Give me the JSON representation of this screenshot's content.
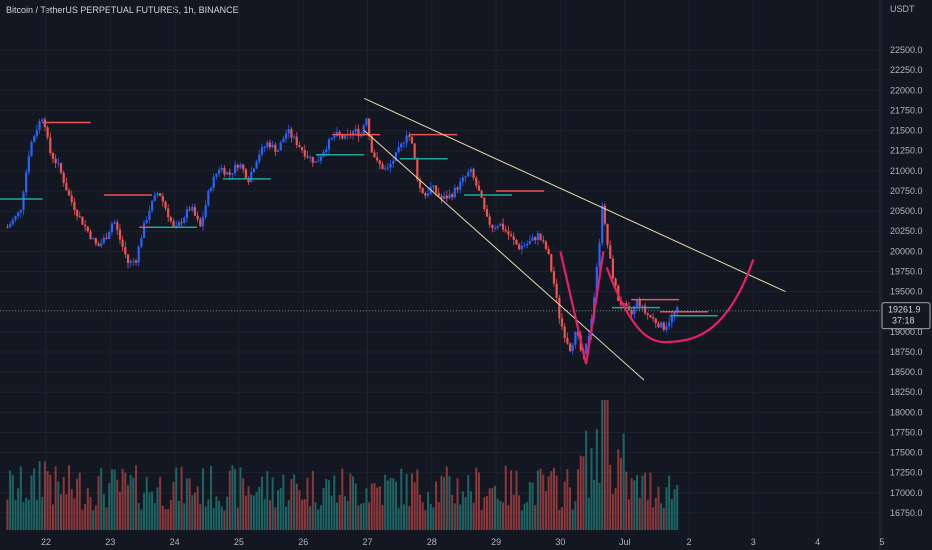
{
  "header": {
    "title": "Bitcoin / TetherUS PERPETUAL FUTURES, 1h, BINANCE"
  },
  "colors": {
    "background": "#131722",
    "up": "#2962ff",
    "down": "#ef5350",
    "trendline": "#e8d9a8",
    "pattern": "#e91e63",
    "vol_up": "#26a69a",
    "vol_down": "#ef5350"
  },
  "chart_data": {
    "type": "candlestick",
    "currency_label": "USDT",
    "yaxis_ticks": [
      16750,
      17000,
      17250,
      17500,
      17750,
      18000,
      18250,
      18500,
      18750,
      19000,
      19250,
      19500,
      19750,
      20000,
      20250,
      20500,
      20750,
      21000,
      21250,
      21500,
      21750,
      22000,
      22250,
      22500
    ],
    "xaxis_ticks": [
      "22",
      "23",
      "24",
      "25",
      "26",
      "27",
      "28",
      "29",
      "30",
      "Jul",
      "2",
      "3",
      "4",
      "5"
    ],
    "ylim": [
      16600,
      22750
    ],
    "xlim": [
      21.4,
      5.2
    ],
    "last_price": {
      "value": "19261.9",
      "countdown": "37:18"
    },
    "close_path": [
      [
        21.4,
        20300
      ],
      [
        21.6,
        20500
      ],
      [
        21.75,
        21300
      ],
      [
        21.88,
        21580
      ],
      [
        21.96,
        21700
      ],
      [
        22.05,
        21250
      ],
      [
        22.2,
        21050
      ],
      [
        22.35,
        20700
      ],
      [
        22.5,
        20450
      ],
      [
        22.65,
        20250
      ],
      [
        22.8,
        20050
      ],
      [
        22.95,
        20200
      ],
      [
        23.05,
        20400
      ],
      [
        23.15,
        20150
      ],
      [
        23.28,
        19850
      ],
      [
        23.4,
        19900
      ],
      [
        23.5,
        20250
      ],
      [
        23.62,
        20550
      ],
      [
        23.75,
        20750
      ],
      [
        23.88,
        20500
      ],
      [
        24.0,
        20250
      ],
      [
        24.12,
        20400
      ],
      [
        24.25,
        20550
      ],
      [
        24.4,
        20300
      ],
      [
        24.55,
        20800
      ],
      [
        24.7,
        21050
      ],
      [
        24.85,
        20950
      ],
      [
        25.0,
        21100
      ],
      [
        25.15,
        20900
      ],
      [
        25.3,
        21200
      ],
      [
        25.45,
        21350
      ],
      [
        25.6,
        21250
      ],
      [
        25.75,
        21500
      ],
      [
        25.9,
        21350
      ],
      [
        26.05,
        21200
      ],
      [
        26.2,
        21100
      ],
      [
        26.35,
        21300
      ],
      [
        26.5,
        21450
      ],
      [
        26.65,
        21400
      ],
      [
        26.8,
        21500
      ],
      [
        26.9,
        21450
      ],
      [
        26.98,
        21700
      ],
      [
        27.05,
        21300
      ],
      [
        27.15,
        21100
      ],
      [
        27.3,
        21000
      ],
      [
        27.45,
        21200
      ],
      [
        27.55,
        21350
      ],
      [
        27.62,
        21500
      ],
      [
        27.7,
        21300
      ],
      [
        27.8,
        20800
      ],
      [
        27.9,
        20700
      ],
      [
        28.0,
        20800
      ],
      [
        28.15,
        20650
      ],
      [
        28.3,
        20700
      ],
      [
        28.45,
        20850
      ],
      [
        28.6,
        21000
      ],
      [
        28.75,
        20700
      ],
      [
        28.85,
        20400
      ],
      [
        28.95,
        20300
      ],
      [
        29.05,
        20350
      ],
      [
        29.2,
        20200
      ],
      [
        29.35,
        20050
      ],
      [
        29.5,
        20100
      ],
      [
        29.65,
        20200
      ],
      [
        29.8,
        20000
      ],
      [
        29.9,
        19600
      ],
      [
        29.98,
        19200
      ],
      [
        30.05,
        19000
      ],
      [
        30.15,
        18800
      ],
      [
        30.25,
        19000
      ],
      [
        30.35,
        18650
      ],
      [
        30.45,
        19000
      ],
      [
        30.52,
        19400
      ],
      [
        30.6,
        20050
      ],
      [
        30.65,
        20600
      ],
      [
        30.7,
        20250
      ],
      [
        30.8,
        19750
      ],
      [
        30.9,
        19400
      ],
      [
        31.0,
        19300
      ],
      [
        31.1,
        19200
      ],
      [
        31.2,
        19400
      ],
      [
        31.3,
        19250
      ],
      [
        31.45,
        19150
      ],
      [
        31.6,
        19050
      ],
      [
        31.75,
        19200
      ],
      [
        31.85,
        19300
      ]
    ],
    "annotations": {
      "upper_trendline": [
        [
          26.95,
          21900
        ],
        [
          33.5,
          19500
        ]
      ],
      "lower_trendline": [
        [
          26.95,
          21500
        ],
        [
          31.3,
          18400
        ]
      ],
      "v_shape": [
        [
          30.0,
          20000
        ],
        [
          30.4,
          18600
        ],
        [
          30.67,
          20000
        ]
      ],
      "cup_curve": {
        "from": [
          30.72,
          19800
        ],
        "bottom": [
          31.8,
          18880
        ],
        "to": [
          33.0,
          19900
        ]
      },
      "support_marks": [
        [
          21.95,
          21600,
          "down"
        ],
        [
          21.2,
          20650,
          "up"
        ],
        [
          22.9,
          20700,
          "down"
        ],
        [
          23.45,
          20300,
          "down"
        ],
        [
          23.6,
          20300,
          "up"
        ],
        [
          24.75,
          20900,
          "up"
        ],
        [
          26.45,
          21450,
          "down"
        ],
        [
          26.2,
          21200,
          "up"
        ],
        [
          27.65,
          21450,
          "down"
        ],
        [
          27.5,
          21150,
          "up"
        ],
        [
          29.0,
          20750,
          "down"
        ],
        [
          28.5,
          20700,
          "up"
        ],
        [
          30.8,
          19300,
          "up"
        ],
        [
          31.1,
          19400,
          "down"
        ],
        [
          31.7,
          19200,
          "up"
        ],
        [
          31.55,
          19250,
          "down"
        ]
      ]
    },
    "volume": {
      "max_at": "30.7",
      "note": "relative volume bars along the bottom"
    }
  }
}
